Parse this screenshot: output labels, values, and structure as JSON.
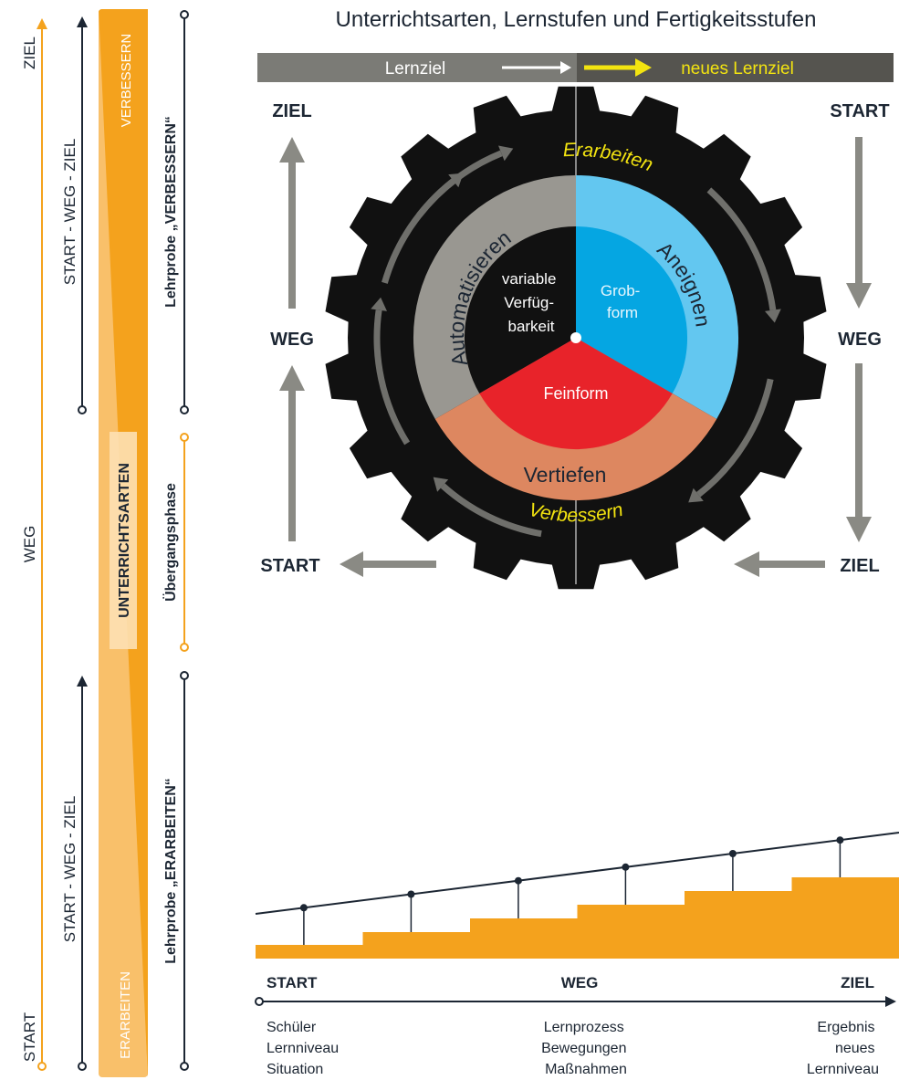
{
  "title": "Unterrichtsarten, Lernstufen und Fertigkeitsstufen",
  "lernziel_bar": {
    "left": "Lernziel",
    "right": "neues Lernziel"
  },
  "corner_labels": {
    "top_left": "ZIEL",
    "top_right": "START",
    "mid_left": "WEG",
    "mid_right": "WEG",
    "bottom_left": "START",
    "bottom_right": "ZIEL"
  },
  "wheel": {
    "outer_ring": {
      "top": "Erarbeiten",
      "bottom": "Verbessern"
    },
    "learning_levels": {
      "left": "Automatisieren",
      "right": "Aneignen",
      "bottom": "Vertiefen"
    },
    "skill_levels": {
      "center_left": "variable Verfüg-barkeit",
      "right": "Grob-form",
      "bottom": "Feinform"
    }
  },
  "left_column": {
    "main_axis": {
      "top": "ZIEL",
      "middle": "WEG",
      "bottom": "START"
    },
    "upper_axis": "START - WEG - ZIEL",
    "lower_axis": "START - WEG - ZIEL",
    "band_top": "VERBESSERN",
    "band_middle": "UNTERRICHTSARTEN",
    "band_bottom": "ERARBEITEN",
    "lehrprobe_top": "Lehrprobe „VERBESSERN“",
    "transition": "Übergangsphase",
    "lehrprobe_bottom": "Lehrprobe „ERARBEITEN“"
  },
  "staircase": {
    "axis": {
      "start": "START",
      "middle": "WEG",
      "end": "ZIEL"
    },
    "captions": {
      "left": [
        "Schüler",
        "Lernniveau",
        "Situation"
      ],
      "middle": [
        "Lernprozess",
        "Bewegungen",
        "Maßnahmen"
      ],
      "right": [
        "Ergebnis",
        "neues",
        "Lernniveau"
      ]
    },
    "steps": 6
  },
  "colors": {
    "orange": "#f4a21d",
    "light_orange": "#f9c06a",
    "gray_bar": "#7b7b76",
    "wheel_black": "#111111",
    "sky_blue": "#63c7f0",
    "blue": "#05a6e2",
    "red": "#e8232a",
    "salmon": "#dd8760",
    "gray_ring": "#999791",
    "yellow": "#f3e410",
    "arrow_gray": "#8a8a84"
  }
}
